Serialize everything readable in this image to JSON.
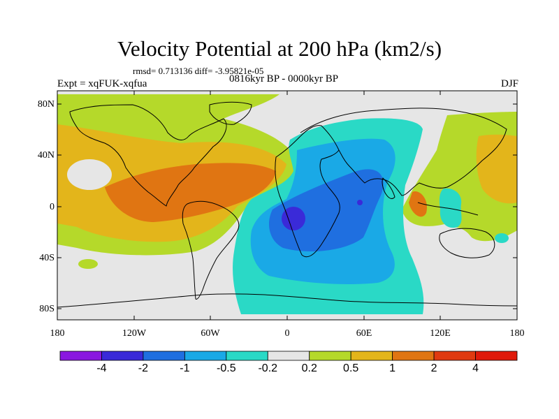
{
  "title": "Velocity Potential at 200 hPa (km2/s)",
  "stats_text": "rmsd= 0.713136 diff= -3.95821e-05",
  "experiment_text": "Expt = xqFUK-xqfua",
  "period_text": "0816kyr BP - 0000kyr BP",
  "season_text": "DJF",
  "y_ticks": [
    "80N",
    "40N",
    "0",
    "40S",
    "80S"
  ],
  "x_ticks": [
    "180",
    "120W",
    "60W",
    "0",
    "60E",
    "120E",
    "180"
  ],
  "colorbar": {
    "labels": [
      "-4",
      "-2",
      "-1",
      "-0.5",
      "-0.2",
      "0.2",
      "0.5",
      "1",
      "2",
      "4"
    ],
    "colors": [
      "#8a17e0",
      "#3a2ad8",
      "#1f6fe0",
      "#1aa9e6",
      "#2ad9c6",
      "#e6e6e6",
      "#b5d92a",
      "#e3b51b",
      "#e07512",
      "#e03a10",
      "#e01a0a"
    ]
  },
  "palette": {
    "neutral": "#e6e6e6",
    "pos_low": "#b5d92a",
    "pos_mid": "#e3b51b",
    "pos_high": "#e07512",
    "neg_low": "#2ad9c6",
    "neg_mid": "#1aa9e6",
    "neg_high": "#1f6fe0",
    "neg_max": "#3a2ad8"
  }
}
